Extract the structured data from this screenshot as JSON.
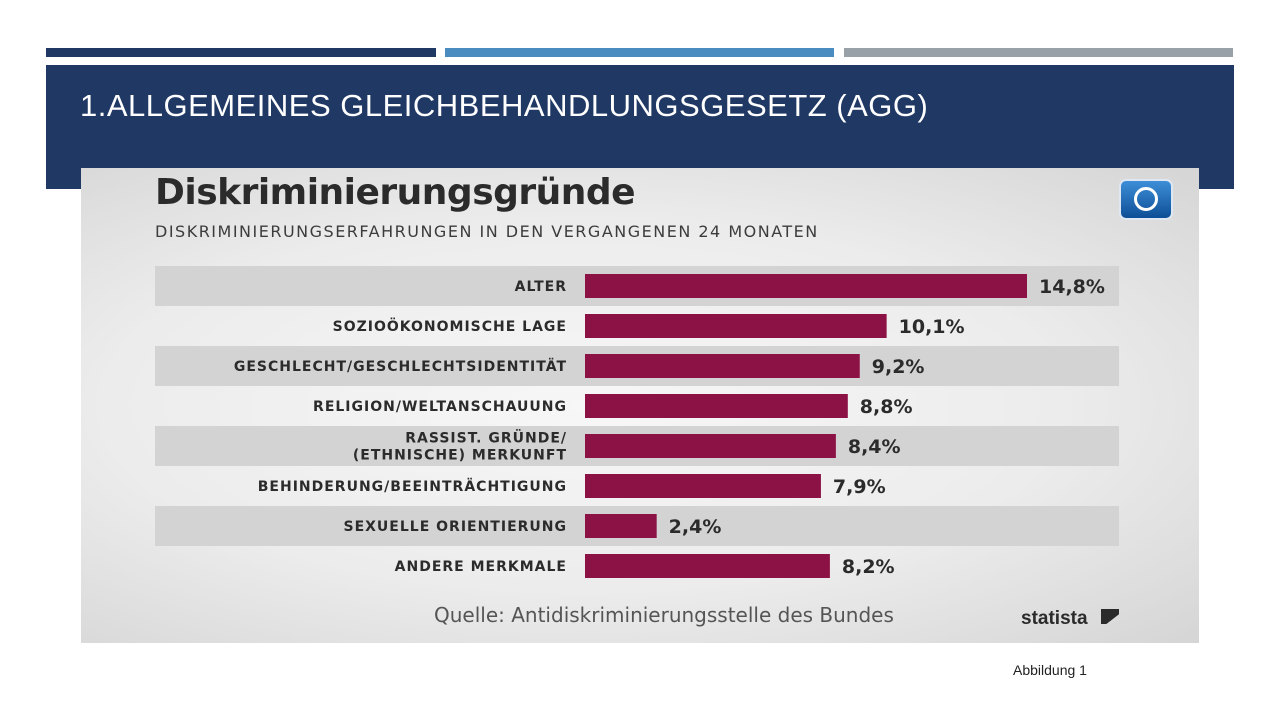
{
  "slide": {
    "title": "1.ALLGEMEINES GLEICHBEHANDLUNGSGESETZ (AGG)",
    "caption": "Abbildung 1"
  },
  "chart_data": {
    "type": "bar",
    "orientation": "horizontal",
    "title": "Diskriminierungsgründe",
    "subtitle": "DISKRIMINIERUNGSERFAHRUNGEN IN DEN VERGANGENEN 24 MONATEN",
    "categories": [
      [
        "ALTER"
      ],
      [
        "SOZIOÖKONOMISCHE LAGE"
      ],
      [
        "GESCHLECHT/GESCHLECHTSIDENTITÄT"
      ],
      [
        "RELIGION/WELTANSCHAUUNG"
      ],
      [
        "RASSIST. GRÜNDE/",
        "(ETHNISCHE) MERKUNFT"
      ],
      [
        "BEHINDERUNG/BEEINTRÄCHTIGUNG"
      ],
      [
        "SEXUELLE ORIENTIERUNG"
      ],
      [
        "ANDERE MERKMALE"
      ]
    ],
    "values": [
      14.8,
      10.1,
      9.2,
      8.8,
      8.4,
      7.9,
      2.4,
      8.2
    ],
    "value_labels": [
      "14,8%",
      "10,1%",
      "9,2%",
      "8,8%",
      "8,4%",
      "7,9%",
      "2,4%",
      "8,2%"
    ],
    "bar_color": "#8c1145",
    "stripe_color": "#d3d3d3",
    "xlim": [
      0,
      14.8
    ],
    "grid": false,
    "legend": "none",
    "source": "Quelle: Antidiskriminierungsstelle des Bundes",
    "brand": "statista"
  }
}
